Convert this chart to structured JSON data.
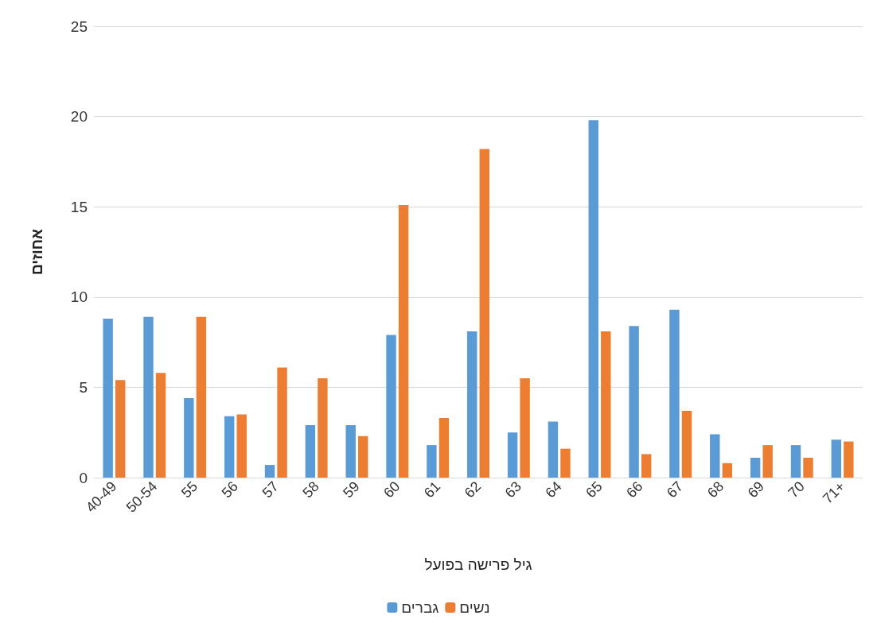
{
  "chart_data": {
    "type": "bar",
    "categories": [
      "40-49",
      "50-54",
      "55",
      "56",
      "57",
      "58",
      "59",
      "60",
      "61",
      "62",
      "63",
      "64",
      "65",
      "66",
      "67",
      "68",
      "69",
      "70",
      "71+"
    ],
    "series": [
      {
        "name": "גברים",
        "color": "#5b9bd5",
        "values": [
          8.8,
          8.9,
          4.4,
          3.4,
          0.7,
          2.9,
          2.9,
          7.9,
          1.8,
          8.1,
          2.5,
          3.1,
          19.8,
          8.4,
          9.3,
          2.4,
          1.1,
          1.8,
          2.1
        ]
      },
      {
        "name": "נשים",
        "color": "#ed7d31",
        "values": [
          5.4,
          5.8,
          8.9,
          3.5,
          6.1,
          5.5,
          2.3,
          15.1,
          3.3,
          18.2,
          5.5,
          1.6,
          8.1,
          1.3,
          3.7,
          0.8,
          1.8,
          1.1,
          2.0
        ]
      }
    ],
    "xlabel": "גיל פרישה בפועל",
    "ylabel": "אחוזים",
    "ylim": [
      0,
      25
    ],
    "yticks": [
      0,
      5,
      10,
      15,
      20,
      25
    ],
    "grid": "y",
    "legend": "bottom"
  }
}
